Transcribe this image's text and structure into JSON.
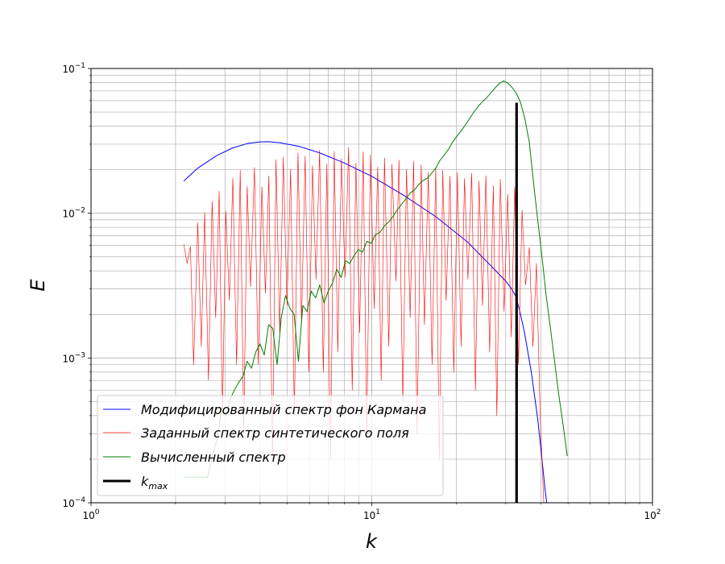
{
  "chart_data": {
    "type": "line",
    "title": "",
    "xlabel": "k",
    "ylabel": "E",
    "x_scale": "log",
    "y_scale": "log",
    "xlim": [
      1,
      100
    ],
    "ylim": [
      0.0001,
      0.1
    ],
    "grid": "on (major and minor)",
    "legend_position": "lower-left",
    "x_ticks": [
      {
        "value": 1,
        "base": "10",
        "exp": "0"
      },
      {
        "value": 10,
        "base": "10",
        "exp": "1"
      },
      {
        "value": 100,
        "base": "10",
        "exp": "2"
      }
    ],
    "y_ticks": [
      {
        "value": 0.0001,
        "base": "10",
        "exp": "−4"
      },
      {
        "value": 0.001,
        "base": "10",
        "exp": "−3"
      },
      {
        "value": 0.01,
        "base": "10",
        "exp": "−2"
      },
      {
        "value": 0.1,
        "base": "10",
        "exp": "−1"
      }
    ],
    "series": [
      {
        "name": "Модифицированный спектр фон Кармана",
        "color": "#0000ff",
        "x": [
          2.14,
          2.4,
          2.8,
          3.2,
          3.6,
          4.0,
          4.3,
          4.7,
          5.5,
          6.5,
          8.0,
          10.0,
          13.0,
          17.0,
          22.0,
          27.0,
          30.0,
          31.5,
          32.5,
          33.5,
          35.0,
          37.0,
          39.0,
          40.5,
          41.5,
          42.0
        ],
        "y": [
          0.0167,
          0.0205,
          0.025,
          0.0283,
          0.0303,
          0.0311,
          0.0312,
          0.0307,
          0.029,
          0.0262,
          0.0222,
          0.018,
          0.0133,
          0.0094,
          0.0063,
          0.0042,
          0.0034,
          0.003,
          0.0027,
          0.0022,
          0.0015,
          0.0008,
          0.00038,
          0.00019,
          0.00012,
          0.0001
        ]
      },
      {
        "name": "Заданный спектр синтетического поля",
        "color": "#ff0000",
        "x": [
          2.14,
          2.2,
          2.26,
          2.32,
          2.4,
          2.47,
          2.54,
          2.62,
          2.7,
          2.78,
          2.86,
          2.94,
          3.02,
          3.11,
          3.2,
          3.3,
          3.4,
          3.5,
          3.6,
          3.7,
          3.82,
          3.94,
          4.06,
          4.18,
          4.3,
          4.43,
          4.56,
          4.7,
          4.84,
          4.99,
          5.14,
          5.3,
          5.46,
          5.62,
          5.79,
          5.97,
          6.15,
          6.33,
          6.52,
          6.72,
          6.92,
          7.13,
          7.35,
          7.57,
          7.8,
          8.03,
          8.27,
          8.52,
          8.78,
          9.05,
          9.32,
          9.6,
          9.89,
          10.2,
          10.5,
          10.8,
          11.1,
          11.5,
          11.8,
          12.2,
          12.5,
          12.9,
          13.3,
          13.7,
          14.1,
          14.5,
          15.0,
          15.4,
          15.9,
          16.4,
          16.9,
          17.4,
          17.9,
          18.4,
          19.0,
          19.6,
          20.2,
          20.8,
          21.4,
          22.0,
          22.7,
          23.4,
          24.1,
          24.8,
          25.5,
          26.3,
          27.1,
          27.9,
          28.7,
          29.6,
          30.5,
          31.4,
          32.3,
          33.3,
          34.3,
          35.3,
          36.4,
          37.5,
          38.6,
          39.8,
          41.0
        ],
        "y": [
          0.0061,
          0.0045,
          0.0059,
          0.0009,
          0.0086,
          0.0012,
          0.0101,
          0.0007,
          0.0121,
          0.0019,
          0.0142,
          0.0004,
          0.0103,
          0.0025,
          0.0175,
          0.0009,
          0.0198,
          0.0003,
          0.0153,
          0.0031,
          0.0207,
          0.0009,
          0.0152,
          0.0028,
          0.0181,
          0.0002,
          0.0235,
          0.0015,
          0.0244,
          0.0023,
          0.0201,
          0.0004,
          0.0261,
          0.0017,
          0.0248,
          0.0008,
          0.0213,
          0.0035,
          0.0272,
          0.0008,
          0.0219,
          0.0002,
          0.0268,
          0.0011,
          0.0239,
          0.0036,
          0.0285,
          0.0006,
          0.0222,
          0.0015,
          0.0266,
          0.0003,
          0.0253,
          0.0022,
          0.0209,
          0.0007,
          0.0241,
          0.0012,
          0.0218,
          0.0034,
          0.0233,
          0.0005,
          0.0201,
          0.0019,
          0.0229,
          0.0003,
          0.0216,
          0.0017,
          0.0192,
          0.0009,
          0.0206,
          0.0002,
          0.0198,
          0.0025,
          0.0181,
          0.0008,
          0.0191,
          0.0012,
          0.0174,
          0.0035,
          0.0189,
          0.0006,
          0.0167,
          0.0023,
          0.0182,
          0.0011,
          0.0155,
          0.0004,
          0.0172,
          0.0021,
          0.0135,
          0.0014,
          0.0151,
          0.0009,
          0.0105,
          0.0032,
          0.0058,
          0.0012,
          0.0045,
          0.0004,
          0.0001
        ]
      },
      {
        "name": "Вычисленный спектр",
        "color": "#008000",
        "x": [
          2.14,
          2.6,
          2.72,
          2.82,
          2.92,
          3.02,
          3.13,
          3.24,
          3.36,
          3.48,
          3.6,
          3.73,
          3.86,
          4.0,
          4.14,
          4.29,
          4.44,
          4.6,
          4.76,
          4.93,
          5.11,
          5.29,
          5.48,
          5.68,
          5.88,
          6.09,
          6.31,
          6.53,
          6.76,
          7.0,
          7.25,
          7.51,
          7.78,
          8.06,
          8.35,
          8.65,
          8.96,
          9.28,
          9.61,
          9.95,
          10.3,
          10.7,
          11.1,
          11.5,
          11.9,
          12.3,
          12.8,
          13.2,
          13.7,
          14.2,
          14.7,
          15.2,
          15.8,
          16.3,
          16.9,
          17.5,
          18.1,
          18.8,
          19.4,
          20.1,
          20.8,
          21.6,
          22.3,
          23.1,
          24.0,
          24.8,
          25.7,
          26.6,
          27.6,
          28.5,
          29.5,
          30.6,
          31.6,
          32.8,
          33.9,
          35.1,
          36.4,
          37.6,
          39.0,
          40.4,
          41.8,
          43.3,
          44.8,
          46.4,
          48.0,
          49.7
        ],
        "y": [
          0.00015,
          0.00015,
          0.00022,
          0.00028,
          0.00045,
          0.0004,
          0.00052,
          0.0006,
          0.00068,
          0.00075,
          0.00095,
          0.00085,
          0.0011,
          0.00125,
          0.00105,
          0.0017,
          0.0016,
          0.0009,
          0.0019,
          0.0027,
          0.0022,
          0.002,
          0.00095,
          0.0023,
          0.0021,
          0.0029,
          0.0026,
          0.0032,
          0.0024,
          0.0029,
          0.0033,
          0.0041,
          0.0036,
          0.0047,
          0.0045,
          0.0051,
          0.0056,
          0.0054,
          0.0064,
          0.0062,
          0.0071,
          0.0074,
          0.0082,
          0.0087,
          0.0095,
          0.0105,
          0.0116,
          0.0125,
          0.0138,
          0.0145,
          0.0158,
          0.0168,
          0.0175,
          0.0188,
          0.0205,
          0.0232,
          0.0252,
          0.0278,
          0.031,
          0.034,
          0.037,
          0.041,
          0.045,
          0.05,
          0.055,
          0.059,
          0.063,
          0.068,
          0.074,
          0.079,
          0.082,
          0.079,
          0.074,
          0.067,
          0.058,
          0.045,
          0.031,
          0.017,
          0.009,
          0.005,
          0.0027,
          0.0016,
          0.00095,
          0.00055,
          0.00035,
          0.00021
        ]
      },
      {
        "name": "k_max",
        "legend_base": "k",
        "legend_sub": "max",
        "color": "#000000",
        "x": [
          32.8,
          32.8
        ],
        "y": [
          0.0001,
          0.058
        ]
      }
    ]
  }
}
